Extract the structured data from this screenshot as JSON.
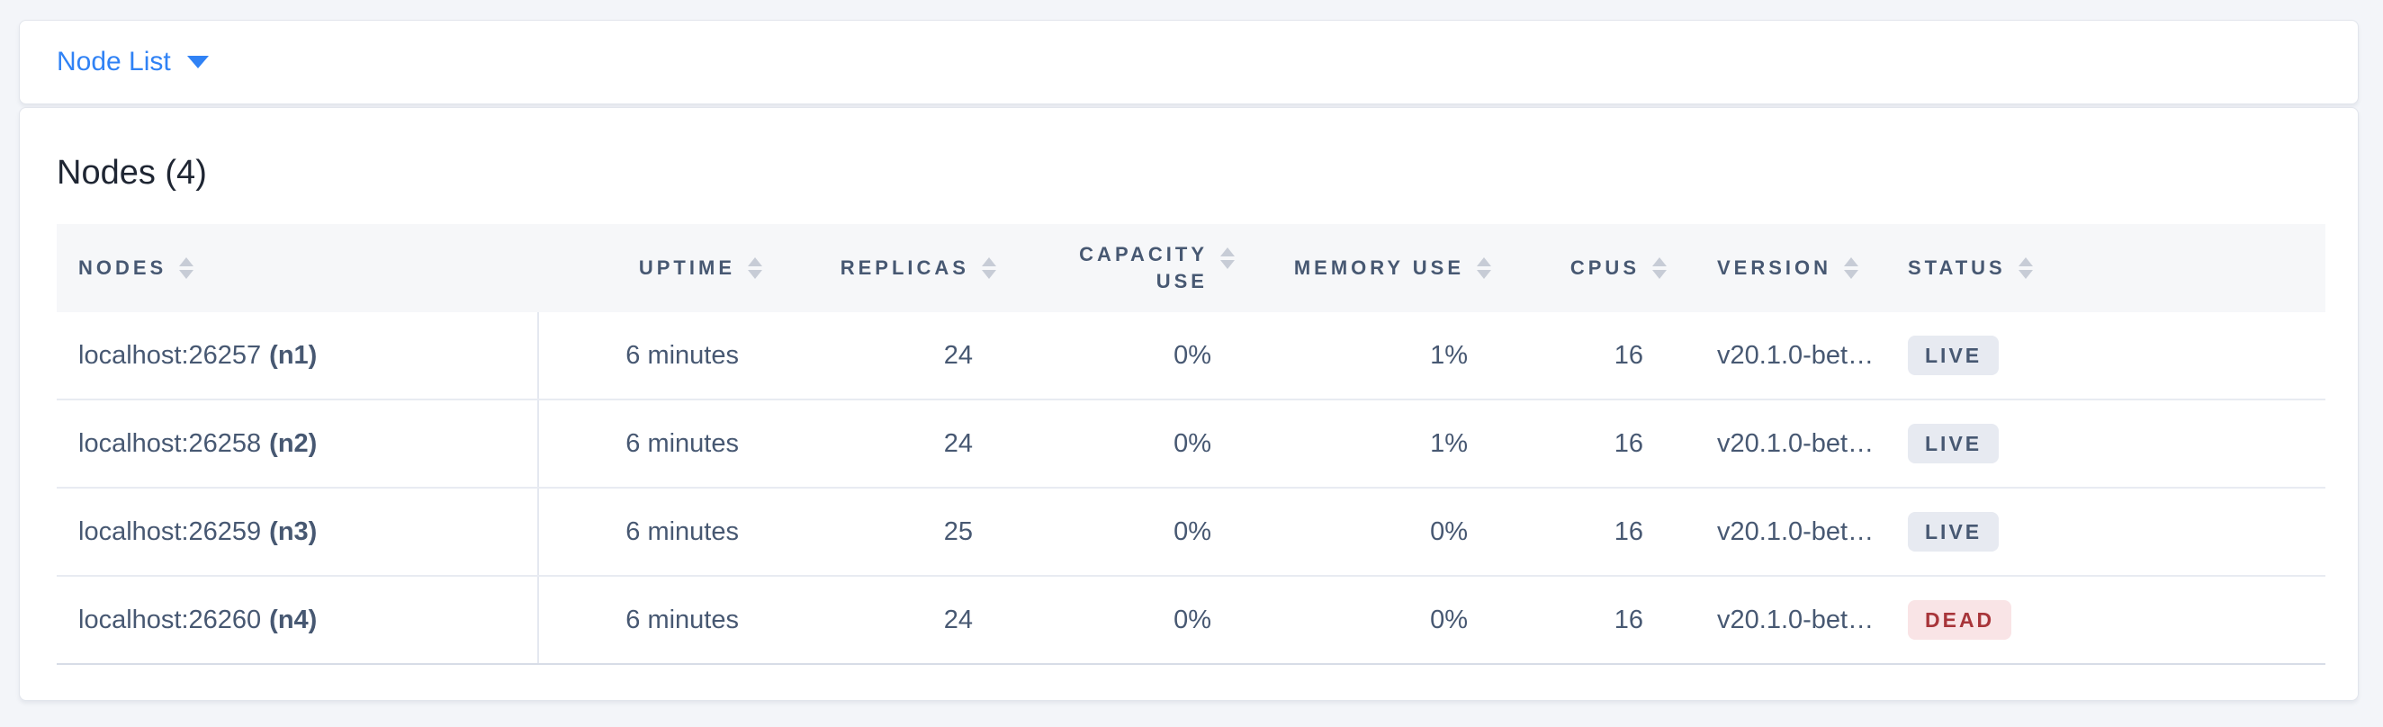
{
  "header_bar": {
    "dropdown_label": "Node List"
  },
  "panel": {
    "title": "Nodes (4)"
  },
  "table": {
    "columns": [
      {
        "key": "nodes",
        "label": "NODES"
      },
      {
        "key": "uptime",
        "label": "UPTIME"
      },
      {
        "key": "replicas",
        "label": "REPLICAS"
      },
      {
        "key": "capacity",
        "label": "CAPACITY\nUSE"
      },
      {
        "key": "memory",
        "label": "MEMORY USE"
      },
      {
        "key": "cpus",
        "label": "CPUS"
      },
      {
        "key": "version",
        "label": "VERSION"
      },
      {
        "key": "status",
        "label": "STATUS"
      }
    ],
    "rows": [
      {
        "address": "localhost:26257",
        "name": "(n1)",
        "uptime": "6 minutes",
        "replicas": "24",
        "capacity": "0%",
        "memory": "1%",
        "cpus": "16",
        "version": "v20.1.0-bet…",
        "status": "LIVE",
        "status_variant": "live"
      },
      {
        "address": "localhost:26258",
        "name": "(n2)",
        "uptime": "6 minutes",
        "replicas": "24",
        "capacity": "0%",
        "memory": "1%",
        "cpus": "16",
        "version": "v20.1.0-bet…",
        "status": "LIVE",
        "status_variant": "live"
      },
      {
        "address": "localhost:26259",
        "name": "(n3)",
        "uptime": "6 minutes",
        "replicas": "25",
        "capacity": "0%",
        "memory": "0%",
        "cpus": "16",
        "version": "v20.1.0-bet…",
        "status": "LIVE",
        "status_variant": "live"
      },
      {
        "address": "localhost:26260",
        "name": "(n4)",
        "uptime": "6 minutes",
        "replicas": "24",
        "capacity": "0%",
        "memory": "0%",
        "cpus": "16",
        "version": "v20.1.0-bet…",
        "status": "DEAD",
        "status_variant": "dead"
      }
    ]
  },
  "colors": {
    "accent_blue": "#3082f5",
    "page_background": "#f3f5f9",
    "header_row_background": "#f6f7f9",
    "table_text": "#475872",
    "live_badge_background": "#e7eaf1",
    "live_badge_text": "#475872",
    "dead_badge_background": "#f9e4e6",
    "dead_badge_text": "#a8353a",
    "sort_icon": "#c7ccd6"
  }
}
